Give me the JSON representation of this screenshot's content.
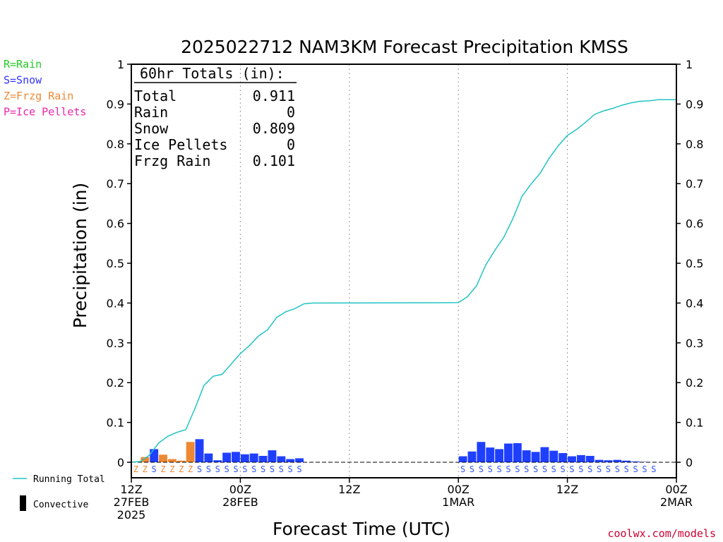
{
  "chart_data": {
    "type": "bar",
    "title": "2025022712 NAM3KM Forecast Precipitation KMSS",
    "xlabel": "Forecast Time (UTC)",
    "ylabel": "Precipitation (in)",
    "ylim": [
      0,
      1
    ],
    "yticks": [
      "0",
      "0.1",
      "0.2",
      "0.3",
      "0.4",
      "0.5",
      "0.6",
      "0.7",
      "0.8",
      "0.9",
      "1"
    ],
    "xlim_hours": [
      0,
      60
    ],
    "xticks": [
      {
        "hour": 0,
        "lines": [
          "12Z",
          "27FEB",
          "2025"
        ]
      },
      {
        "hour": 12,
        "lines": [
          "00Z",
          "28FEB"
        ]
      },
      {
        "hour": 24,
        "lines": [
          "12Z"
        ]
      },
      {
        "hour": 36,
        "lines": [
          "00Z",
          "1MAR"
        ]
      },
      {
        "hour": 48,
        "lines": [
          "12Z"
        ]
      },
      {
        "hour": 60,
        "lines": [
          "00Z",
          "2MAR"
        ]
      }
    ],
    "grid": "dotted vertical at 00Z and 12Z",
    "ptype_legend": [
      {
        "label": "R=Rain",
        "color": "#22cc22"
      },
      {
        "label": "S=Snow",
        "color": "#3333ff"
      },
      {
        "label": "Z=Frzg Rain",
        "color": "#ee8833"
      },
      {
        "label": "P=Ice Pellets",
        "color": "#ee22aa"
      }
    ],
    "totals": {
      "header": "60hr Totals (in):",
      "rows": [
        {
          "label": "Total",
          "value": "0.911"
        },
        {
          "label": "Rain",
          "value": "0"
        },
        {
          "label": "Snow",
          "value": "0.809"
        },
        {
          "label": "Ice Pellets",
          "value": "0"
        },
        {
          "label": "Frzg Rain",
          "value": "0.101"
        }
      ]
    },
    "bars": [
      {
        "hour": 1,
        "value": 0.002,
        "ptype": "Z"
      },
      {
        "hour": 2,
        "value": 0.013,
        "ptype": "Z"
      },
      {
        "hour": 3,
        "value": 0.033,
        "ptype": "S"
      },
      {
        "hour": 4,
        "value": 0.019,
        "ptype": "Z"
      },
      {
        "hour": 5,
        "value": 0.008,
        "ptype": "Z"
      },
      {
        "hour": 6,
        "value": 0.004,
        "ptype": "Z"
      },
      {
        "hour": 7,
        "value": 0.051,
        "ptype": "Z"
      },
      {
        "hour": 8,
        "value": 0.058,
        "ptype": "S"
      },
      {
        "hour": 9,
        "value": 0.022,
        "ptype": "S"
      },
      {
        "hour": 10,
        "value": 0.005,
        "ptype": "S"
      },
      {
        "hour": 11,
        "value": 0.024,
        "ptype": "S"
      },
      {
        "hour": 12,
        "value": 0.026,
        "ptype": "S"
      },
      {
        "hour": 13,
        "value": 0.02,
        "ptype": "S"
      },
      {
        "hour": 14,
        "value": 0.022,
        "ptype": "S"
      },
      {
        "hour": 15,
        "value": 0.016,
        "ptype": "S"
      },
      {
        "hour": 16,
        "value": 0.03,
        "ptype": "S"
      },
      {
        "hour": 17,
        "value": 0.015,
        "ptype": "S"
      },
      {
        "hour": 18,
        "value": 0.008,
        "ptype": "S"
      },
      {
        "hour": 19,
        "value": 0.01,
        "ptype": "S"
      },
      {
        "hour": 37,
        "value": 0.015,
        "ptype": "S"
      },
      {
        "hour": 38,
        "value": 0.027,
        "ptype": "S"
      },
      {
        "hour": 39,
        "value": 0.051,
        "ptype": "S"
      },
      {
        "hour": 40,
        "value": 0.037,
        "ptype": "S"
      },
      {
        "hour": 41,
        "value": 0.033,
        "ptype": "S"
      },
      {
        "hour": 42,
        "value": 0.047,
        "ptype": "S"
      },
      {
        "hour": 43,
        "value": 0.048,
        "ptype": "S"
      },
      {
        "hour": 44,
        "value": 0.03,
        "ptype": "S"
      },
      {
        "hour": 45,
        "value": 0.026,
        "ptype": "S"
      },
      {
        "hour": 46,
        "value": 0.038,
        "ptype": "S"
      },
      {
        "hour": 47,
        "value": 0.029,
        "ptype": "S"
      },
      {
        "hour": 48,
        "value": 0.023,
        "ptype": "S"
      },
      {
        "hour": 49,
        "value": 0.015,
        "ptype": "S"
      },
      {
        "hour": 50,
        "value": 0.018,
        "ptype": "S"
      },
      {
        "hour": 51,
        "value": 0.016,
        "ptype": "S"
      },
      {
        "hour": 52,
        "value": 0.006,
        "ptype": "S"
      },
      {
        "hour": 53,
        "value": 0.005,
        "ptype": "S"
      },
      {
        "hour": 54,
        "value": 0.006,
        "ptype": "S"
      },
      {
        "hour": 55,
        "value": 0.004,
        "ptype": "S"
      },
      {
        "hour": 56,
        "value": 0.002,
        "ptype": "S"
      },
      {
        "hour": 57,
        "value": 0.001,
        "ptype": "S"
      },
      {
        "hour": 58,
        "value": 0.0,
        "ptype": "S"
      }
    ],
    "running_total": {
      "name": "Running Total",
      "color": "#22c4c4",
      "points": [
        [
          0,
          0.0
        ],
        [
          1,
          0.002
        ],
        [
          2,
          0.018
        ],
        [
          3,
          0.048
        ],
        [
          4,
          0.065
        ],
        [
          5,
          0.075
        ],
        [
          6,
          0.082
        ],
        [
          7,
          0.135
        ],
        [
          8,
          0.193
        ],
        [
          9,
          0.216
        ],
        [
          10,
          0.221
        ],
        [
          11,
          0.247
        ],
        [
          12,
          0.273
        ],
        [
          13,
          0.293
        ],
        [
          14,
          0.317
        ],
        [
          15,
          0.333
        ],
        [
          16,
          0.364
        ],
        [
          17,
          0.378
        ],
        [
          18,
          0.386
        ],
        [
          19,
          0.398
        ],
        [
          20,
          0.4
        ],
        [
          36,
          0.401
        ],
        [
          37,
          0.416
        ],
        [
          38,
          0.443
        ],
        [
          39,
          0.495
        ],
        [
          40,
          0.532
        ],
        [
          41,
          0.565
        ],
        [
          42,
          0.612
        ],
        [
          43,
          0.668
        ],
        [
          44,
          0.699
        ],
        [
          45,
          0.726
        ],
        [
          46,
          0.764
        ],
        [
          47,
          0.795
        ],
        [
          48,
          0.821
        ],
        [
          49,
          0.836
        ],
        [
          50,
          0.854
        ],
        [
          51,
          0.874
        ],
        [
          52,
          0.883
        ],
        [
          53,
          0.889
        ],
        [
          54,
          0.897
        ],
        [
          55,
          0.903
        ],
        [
          56,
          0.907
        ],
        [
          57,
          0.908
        ],
        [
          58,
          0.911
        ],
        [
          60,
          0.911
        ]
      ]
    },
    "bottom_legend": [
      {
        "label": "Running Total",
        "symbol": "line"
      },
      {
        "label": "Convective",
        "symbol": "bar"
      }
    ],
    "credit": "coolwx.com/models"
  }
}
